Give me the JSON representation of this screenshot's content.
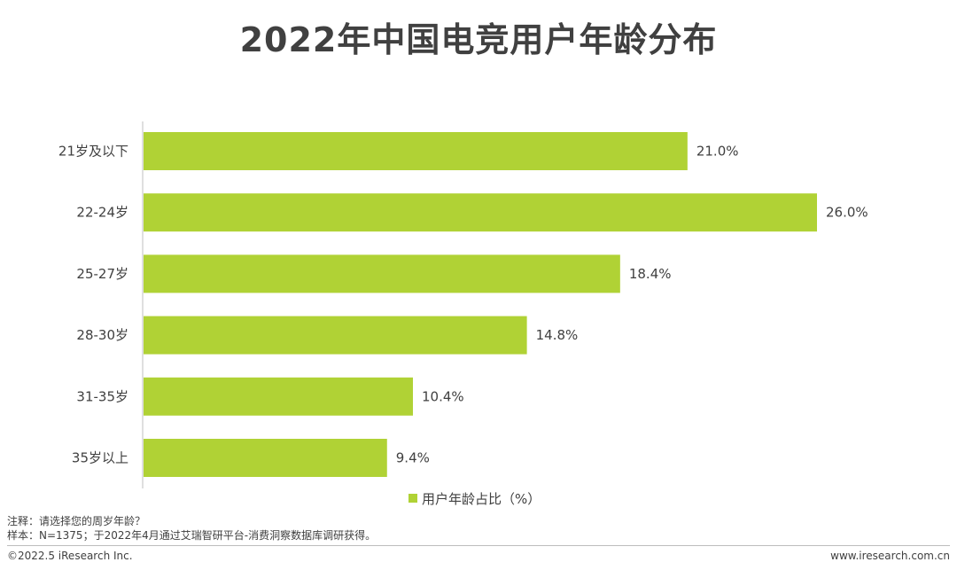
{
  "title": "2022年中国电竞用户年龄分布",
  "chart_data": {
    "type": "bar",
    "orientation": "horizontal",
    "categories": [
      "21岁及以下",
      "22-24岁",
      "25-27岁",
      "28-30岁",
      "31-35岁",
      "35岁以上"
    ],
    "values": [
      21.0,
      26.0,
      18.4,
      14.8,
      10.4,
      9.4
    ],
    "value_labels": [
      "21.0%",
      "26.0%",
      "18.4%",
      "14.8%",
      "10.4%",
      "9.4%"
    ],
    "series": [
      {
        "name": "用户年龄占比（%）",
        "values": [
          21.0,
          26.0,
          18.4,
          14.8,
          10.4,
          9.4
        ]
      }
    ],
    "xlim": [
      0,
      26
    ],
    "grid": false,
    "legend_position": "bottom",
    "bar_color": "#b0d235"
  },
  "notes": {
    "note": "注释：请选择您的周岁年龄？",
    "sample": "样本：N=1375；于2022年4月通过艾瑞智研平台-消费洞察数据库调研获得。"
  },
  "footer": {
    "copyright": "©2022.5 iResearch Inc.",
    "website": "www.iresearch.com.cn"
  }
}
